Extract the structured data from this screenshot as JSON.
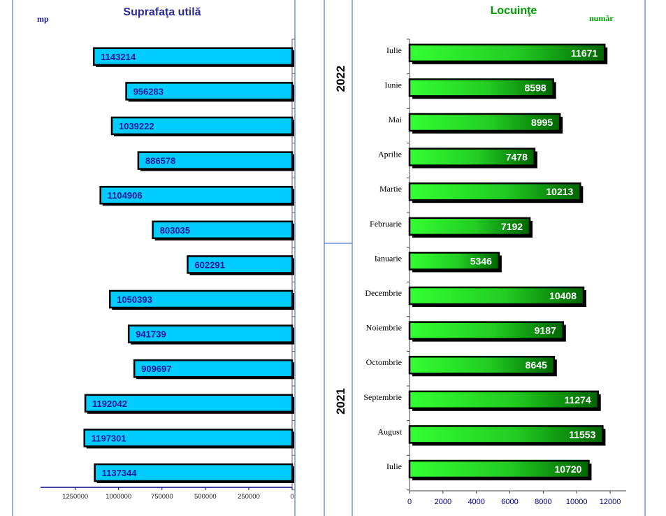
{
  "colors": {
    "left_title": "#2b2b99",
    "right_title": "#009a00",
    "left_bar": "#00ccff",
    "right_bar_light": "#33ff33",
    "right_bar_dark": "#006600",
    "divider": "#4a7acc",
    "left_label": "#1a1a9c"
  },
  "chart_data": [
    {
      "type": "bar",
      "orientation": "horizontal",
      "title": "Suprafaţa utilă",
      "unit": "mp",
      "x_direction": "reversed",
      "xlim": [
        0,
        1450000
      ],
      "xticks": [
        1250000,
        1000000,
        750000,
        500000,
        250000,
        0
      ],
      "xtick_labels": [
        "1250000",
        "1000000",
        "750000",
        "500000",
        "250000",
        "0"
      ],
      "categories": [
        "Iulie",
        "Iunie",
        "Mai",
        "Aprilie",
        "Martie",
        "Februarie",
        "Ianuarie",
        "Decembrie",
        "Noiembrie",
        "Octombrie",
        "Septembrie",
        "August",
        "Iulie"
      ],
      "values": [
        1143214,
        956283,
        1039222,
        886578,
        1104906,
        803035,
        602291,
        1050393,
        941739,
        909697,
        1192042,
        1197301,
        1137344
      ],
      "value_labels": [
        "1143214",
        "956283",
        "1039222",
        "886578",
        "1104906",
        "803035",
        "602291",
        "1050393",
        "941739",
        "909697",
        "1192042",
        "1197301",
        "1137344"
      ],
      "grid": false
    },
    {
      "type": "bar",
      "orientation": "horizontal",
      "title": "Locuinţe",
      "unit": "număr",
      "xlim": [
        0,
        13000
      ],
      "xticks": [
        0,
        2000,
        4000,
        6000,
        8000,
        10000,
        12000
      ],
      "xtick_labels": [
        "0",
        "2000",
        "4000",
        "6000",
        "8000",
        "10000",
        "12000"
      ],
      "categories": [
        "Iulie",
        "Iunie",
        "Mai",
        "Aprilie",
        "Martie",
        "Februarie",
        "Ianuarie",
        "Decembrie",
        "Noiembrie",
        "Octombrie",
        "Septembrie",
        "August",
        "Iulie"
      ],
      "values": [
        11671,
        8598,
        8995,
        7478,
        10213,
        7192,
        5346,
        10408,
        9187,
        8645,
        11274,
        11553,
        10720
      ],
      "value_labels": [
        "11671",
        "8598",
        "8995",
        "7478",
        "10213",
        "7192",
        "5346",
        "10408",
        "9187",
        "8645",
        "11274",
        "11553",
        "10720"
      ],
      "grid": false
    }
  ],
  "year_groups": [
    {
      "label": "2022",
      "from_index": 0,
      "to_index": 6
    },
    {
      "label": "2021",
      "from_index": 7,
      "to_index": 12
    }
  ]
}
